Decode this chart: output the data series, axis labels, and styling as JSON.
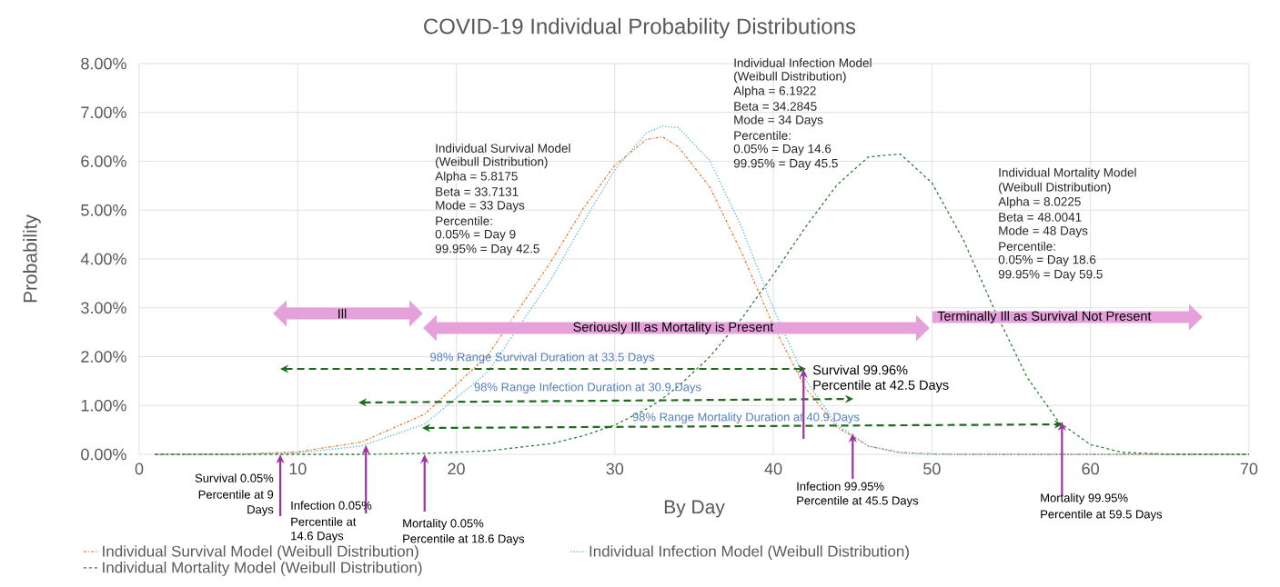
{
  "chart_data": {
    "type": "line",
    "title": "COVID-19 Individual Probability Distributions",
    "xlabel": "By Day",
    "ylabel": "Probability",
    "x": [
      1,
      6,
      10,
      14,
      18,
      22,
      26,
      28,
      30,
      32,
      33,
      34,
      36,
      38,
      40,
      42,
      44,
      46,
      48,
      50,
      52,
      54,
      56,
      58,
      60,
      62,
      65,
      70
    ],
    "series": [
      {
        "name": "Individual Survival Model (Weibull Distribution)",
        "color": "#ed7d31",
        "line_style": "dashdot",
        "values": [
          0,
          0,
          0.05,
          0.25,
          0.82,
          2.03,
          3.96,
          5.03,
          5.92,
          6.45,
          6.5,
          6.3,
          5.47,
          4.13,
          2.63,
          1.37,
          0.56,
          0.17,
          0.04,
          0.01,
          0,
          0,
          0,
          0,
          0,
          0,
          0,
          0
        ]
      },
      {
        "name": "Individual Infection Model (Weibull Distribution)",
        "color": "#4fb3e8",
        "line_style": "dotted",
        "values": [
          0,
          0,
          0.03,
          0.17,
          0.62,
          1.69,
          3.59,
          4.74,
          5.83,
          6.58,
          6.72,
          6.69,
          6.01,
          4.65,
          2.99,
          1.54,
          0.61,
          0.17,
          0.03,
          0,
          0,
          0,
          0,
          0,
          0,
          0,
          0,
          0
        ]
      },
      {
        "name": "Individual Mortality Model (Weibull Distribution)",
        "color": "#2e7d32",
        "line_style": "dashed",
        "values": [
          0,
          0,
          0,
          0,
          0.02,
          0.07,
          0.22,
          0.38,
          0.6,
          0.93,
          1.14,
          1.39,
          2.0,
          2.78,
          3.68,
          4.64,
          5.51,
          6.09,
          6.15,
          5.56,
          4.38,
          2.92,
          1.58,
          0.66,
          0.2,
          0.04,
          0,
          0
        ]
      }
    ],
    "xlim": [
      0,
      70
    ],
    "xticks": [
      0,
      10,
      20,
      30,
      40,
      50,
      60,
      70
    ],
    "ylim": [
      0,
      8
    ],
    "yticks": [
      {
        "value": 0,
        "label": "0.00%"
      },
      {
        "value": 1,
        "label": "1.00%"
      },
      {
        "value": 2,
        "label": "2.00%"
      },
      {
        "value": 3,
        "label": "3.00%"
      },
      {
        "value": 4,
        "label": "4.00%"
      },
      {
        "value": 5,
        "label": "5.00%"
      },
      {
        "value": 6,
        "label": "6.00%"
      },
      {
        "value": 7,
        "label": "7.00%"
      },
      {
        "value": 8,
        "label": "8.00%"
      }
    ],
    "grid": true,
    "legend": "bottom",
    "annotations": [
      "Individual Survival Model",
      "(Weibull Distribution)",
      "Alpha = 5.8175",
      "Beta = 33.7131",
      "Mode = 33 Days",
      "Percentile:",
      "0.05% = Day 9",
      "99.95% = Day 42.5",
      "Individual Infection Model",
      "(Weibull Distribution)",
      "Alpha = 6.1922",
      "Beta = 34.2845",
      "Mode = 34 Days",
      "Percentile:",
      "0.05% = Day 14.6",
      "99.95% = Day 45.5",
      "Individual Mortality Model",
      "(Weibull Distribution)",
      "Alpha = 8.0225",
      "Beta = 48.0041",
      "Mode = 48 Days",
      "Percentile:",
      "0.05% = Day 18.6",
      "99.95% = Day 59.5",
      "Ill",
      "Seriously Ill as Mortality is Present",
      "Terminally Ill as Survival Not Present",
      "98% Range Survival Duration at 33.5 Days",
      "98% Range Infection Duration at 30.9 Days",
      "98% Range Mortality Duration at 40.9 Days",
      {
        "text": "Survival 99.96%",
        "x": 41.9,
        "y": 1.75
      },
      "Percentile at 42.5 Days",
      {
        "text": "Survival 0.05%",
        "x": 8.9,
        "y": 0
      },
      "Percentile at 9",
      "Days",
      {
        "text": "Infection 0.05%",
        "x": 14.3,
        "y": 0.19
      },
      "Percentile at",
      "14.6 Days",
      {
        "text": "Mortality 0.05%",
        "x": 18,
        "y": 0
      },
      "Percentile at 18.6 Days",
      {
        "text": "Infection 99.95%",
        "x": 45,
        "y": 0.43
      },
      "Percentile at 45.5 Days",
      {
        "text": "Mortality 99.95%",
        "x": 58.2,
        "y": 0.67
      },
      "Percentile at 59.5 Days"
    ]
  }
}
